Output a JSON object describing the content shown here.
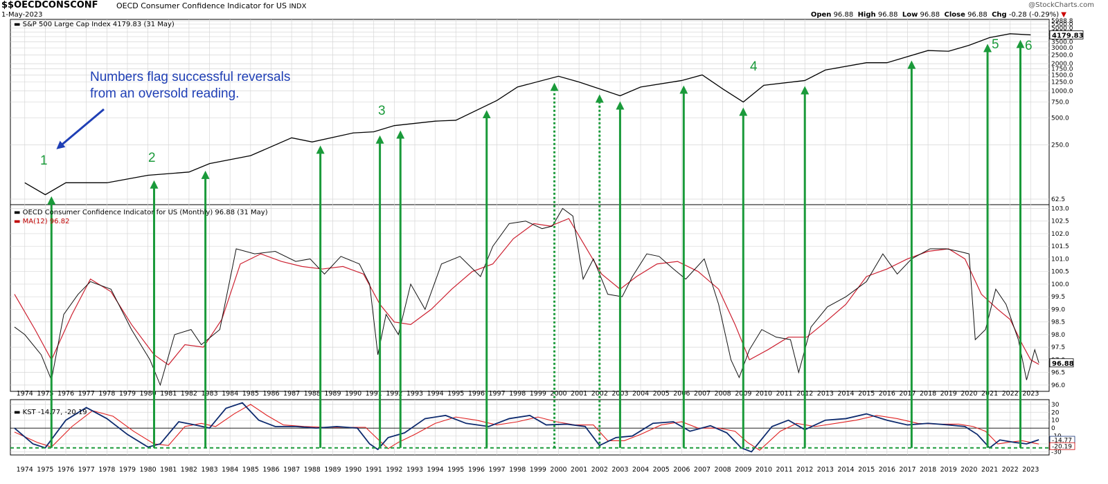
{
  "header": {
    "symbol": "$$OECDCONSCONF",
    "description": "OECD Consumer Confidence Indicator for US",
    "exchange": "INDX",
    "date": "1-May-2023",
    "watermark": "@StockCharts.com",
    "ohlc": {
      "open_label": "Open",
      "open": "96.88",
      "high_label": "High",
      "high": "96.88",
      "low_label": "Low",
      "low": "96.88",
      "close_label": "Close",
      "close": "96.88",
      "chg_label": "Chg",
      "chg": "-0.28 (-0.29%)"
    }
  },
  "annotation": {
    "line1": "Numbers flag successful reversals",
    "line2": "from an oversold reading."
  },
  "panels": {
    "sp500_label": "S&P 500 Large Cap Index 4179.83 (31 May)",
    "cci_label": "OECD Consumer Confidence Indicator for US (Monthly) 96.88 (31 May)",
    "ma_label": "MA(12) 96.82",
    "kst_label_name": "KST",
    "kst_label_vals": "-14.77, -20.19"
  },
  "reversal_numbers": [
    "1",
    "2",
    "3",
    "4",
    "5",
    "6"
  ],
  "colors": {
    "arrow_green": "#1a9a3a",
    "annotation_blue": "#1f3fb5",
    "price_line": "#000000",
    "ma_line": "#cc1f2f",
    "kst_line": "#0d2a6e",
    "kst_signal": "#e02020",
    "grid": "#d6d6d6"
  },
  "chart_data": [
    {
      "type": "line",
      "title": "S&P 500 Large Cap Index 4179.83 (31 May)",
      "scale": "log",
      "y_ticks": [
        "62.5",
        "250.0",
        "500.0",
        "750.0",
        "1000.0",
        "1250.0",
        "1500.0",
        "1750.0",
        "2000.0",
        "2500.0",
        "3000.0",
        "3500.0",
        "4000.0",
        "4500.0",
        "5000.0",
        "5500.0",
        "5988.8"
      ],
      "last_value": "4179.83",
      "x": [
        1974,
        1975,
        1976,
        1978,
        1980,
        1982,
        1983,
        1985,
        1987,
        1988,
        1990,
        1991,
        1992,
        1994,
        1995,
        1997,
        1998,
        2000,
        2001,
        2002,
        2003,
        2004,
        2006,
        2007,
        2008,
        2009,
        2010,
        2012,
        2013,
        2015,
        2016,
        2018,
        2019,
        2020,
        2021,
        2022,
        2023
      ],
      "values": [
        95,
        70,
        95,
        95,
        115,
        125,
        155,
        190,
        300,
        270,
        340,
        350,
        410,
        460,
        470,
        780,
        1100,
        1450,
        1250,
        1050,
        880,
        1100,
        1300,
        1500,
        1050,
        750,
        1150,
        1300,
        1700,
        2050,
        2050,
        2800,
        2750,
        3200,
        3900,
        4300,
        4179.83
      ]
    },
    {
      "type": "line",
      "title": "OECD Consumer Confidence Indicator for US (Monthly) 96.88 (31 May)",
      "y_ticks": [
        "96.0",
        "96.5",
        "97.0",
        "97.5",
        "98.0",
        "98.5",
        "99.0",
        "99.5",
        "100.0",
        "100.5",
        "101.0",
        "101.5",
        "102.0",
        "102.5",
        "103.0"
      ],
      "last_value": "96.88",
      "series": [
        {
          "name": "OECD Consumer Confidence Indicator for US (Monthly)",
          "x": [
            1973.5,
            1974,
            1974.8,
            1975.3,
            1975.9,
            1976.6,
            1977.2,
            1978.2,
            1979.2,
            1980.1,
            1980.6,
            1981.3,
            1982.1,
            1982.6,
            1983.5,
            1984.3,
            1985.2,
            1986.2,
            1987.2,
            1987.9,
            1988.6,
            1989.4,
            1990.3,
            1990.8,
            1991.2,
            1991.6,
            1992.2,
            1992.8,
            1993.5,
            1994.3,
            1995.2,
            1996.2,
            1996.8,
            1997.6,
            1998.4,
            1999.2,
            1999.7,
            2000.2,
            2000.7,
            2001.2,
            2001.7,
            2002.4,
            2003.1,
            2003.6,
            2004.3,
            2004.9,
            2005.6,
            2006.2,
            2007.1,
            2007.8,
            2008.4,
            2008.8,
            2009.3,
            2009.9,
            2010.6,
            2011.3,
            2011.7,
            2012.3,
            2013.1,
            2014.0,
            2015.0,
            2015.8,
            2016.5,
            2017.2,
            2018.1,
            2018.9,
            2019.5,
            2020.0,
            2020.3,
            2020.8,
            2021.3,
            2021.8,
            2022.4,
            2022.8,
            2023.2,
            2023.4
          ],
          "values": [
            98.3,
            98.0,
            97.2,
            96.2,
            98.8,
            99.6,
            100.1,
            99.8,
            98.2,
            97.0,
            96.0,
            98.0,
            98.2,
            97.6,
            98.2,
            101.4,
            101.2,
            101.3,
            100.9,
            101.0,
            100.4,
            101.1,
            100.8,
            100.0,
            97.2,
            98.8,
            98.0,
            100.0,
            99.0,
            100.8,
            101.1,
            100.3,
            101.5,
            102.4,
            102.5,
            102.2,
            102.3,
            103.0,
            102.7,
            100.2,
            101.0,
            99.6,
            99.5,
            100.3,
            101.2,
            101.1,
            100.6,
            100.2,
            101.0,
            99.2,
            97.0,
            96.3,
            97.4,
            98.2,
            97.9,
            97.8,
            96.5,
            98.3,
            99.1,
            99.5,
            100.1,
            101.2,
            100.4,
            101.0,
            101.4,
            101.4,
            101.3,
            101.2,
            97.8,
            98.2,
            99.8,
            99.2,
            97.8,
            96.2,
            97.4,
            96.88
          ]
        },
        {
          "name": "MA(12)",
          "x": [
            1973.5,
            1974.5,
            1975.3,
            1976.3,
            1977.2,
            1978.2,
            1979.2,
            1980.3,
            1981.0,
            1981.8,
            1982.7,
            1983.6,
            1984.5,
            1985.5,
            1986.5,
            1987.5,
            1988.5,
            1989.5,
            1990.5,
            1991.3,
            1992.0,
            1992.8,
            1993.8,
            1994.8,
            1995.8,
            1996.8,
            1997.8,
            1998.8,
            1999.6,
            2000.5,
            2001.3,
            2002.1,
            2003.0,
            2003.8,
            2004.8,
            2005.8,
            2006.8,
            2007.8,
            2008.6,
            2009.3,
            2010.2,
            2011.2,
            2012.1,
            2013.0,
            2014.0,
            2015.0,
            2016.0,
            2017.0,
            2018.0,
            2019.0,
            2019.8,
            2020.6,
            2021.4,
            2022.0,
            2022.6,
            2023.0,
            2023.4
          ],
          "values": [
            99.6,
            98.2,
            97.0,
            98.8,
            100.2,
            99.7,
            98.4,
            97.2,
            96.8,
            97.6,
            97.5,
            98.6,
            100.8,
            101.2,
            100.9,
            100.7,
            100.6,
            100.7,
            100.4,
            99.2,
            98.5,
            98.4,
            99.0,
            99.8,
            100.5,
            100.8,
            101.8,
            102.4,
            102.3,
            102.6,
            101.5,
            100.4,
            99.8,
            100.3,
            100.8,
            100.9,
            100.5,
            99.8,
            98.4,
            97.0,
            97.4,
            97.9,
            97.9,
            98.5,
            99.2,
            100.3,
            100.6,
            101.0,
            101.3,
            101.4,
            101.0,
            99.6,
            99.0,
            98.6,
            97.6,
            97.0,
            96.82
          ]
        }
      ]
    },
    {
      "type": "line",
      "title": "KST -14.77, -20.19",
      "y_ticks": [
        "-30",
        "-20",
        "-10",
        "0",
        "10",
        "20",
        "30"
      ],
      "series": [
        {
          "name": "KST",
          "x": [
            1973.5,
            1974.4,
            1975.0,
            1976.0,
            1977.0,
            1978.0,
            1979.0,
            1980.0,
            1980.6,
            1981.5,
            1982.3,
            1983.0,
            1983.8,
            1984.6,
            1985.4,
            1986.2,
            1987.2,
            1988.2,
            1989.2,
            1990.2,
            1990.8,
            1991.2,
            1991.7,
            1992.5,
            1993.5,
            1994.5,
            1995.5,
            1996.6,
            1997.6,
            1998.6,
            1999.4,
            2000.4,
            2001.3,
            2002.0,
            2002.8,
            2003.6,
            2004.6,
            2005.6,
            2006.4,
            2007.4,
            2008.2,
            2008.9,
            2009.4,
            2010.4,
            2011.2,
            2012.0,
            2013.0,
            2014.0,
            2015.0,
            2016.0,
            2017.0,
            2018.0,
            2019.0,
            2019.8,
            2020.4,
            2021.0,
            2021.5,
            2022.2,
            2022.8,
            2023.4
          ],
          "values": [
            0,
            -20,
            -25,
            10,
            26,
            12,
            -8,
            -24,
            -20,
            8,
            4,
            0,
            25,
            32,
            10,
            2,
            2,
            0,
            2,
            0,
            -20,
            -27,
            -12,
            -6,
            12,
            16,
            6,
            2,
            12,
            16,
            4,
            5,
            2,
            -22,
            -12,
            -10,
            6,
            8,
            -4,
            3,
            -6,
            -25,
            -30,
            2,
            10,
            -2,
            10,
            12,
            18,
            10,
            4,
            6,
            4,
            2,
            -8,
            -25,
            -15,
            -18,
            -20,
            -14.77
          ]
        },
        {
          "name": "Signal",
          "x": [
            1973.5,
            1974.6,
            1975.3,
            1976.3,
            1977.3,
            1978.3,
            1979.3,
            1980.3,
            1981.0,
            1981.8,
            1982.6,
            1983.3,
            1984.2,
            1985.0,
            1985.8,
            1986.6,
            1987.6,
            1988.6,
            1989.6,
            1990.6,
            1991.2,
            1991.7,
            1992.2,
            1993.0,
            1994.0,
            1995.0,
            1996.0,
            1997.0,
            1998.0,
            1999.0,
            1999.9,
            2000.8,
            2001.7,
            2002.4,
            2003.2,
            2004.0,
            2005.0,
            2006.0,
            2006.8,
            2007.8,
            2008.6,
            2009.2,
            2009.8,
            2010.8,
            2011.6,
            2012.5,
            2013.5,
            2014.5,
            2015.5,
            2016.5,
            2017.5,
            2018.5,
            2019.5,
            2020.2,
            2020.8,
            2021.4,
            2021.9,
            2022.6,
            2023.4
          ],
          "values": [
            -5,
            -18,
            -24,
            2,
            22,
            15,
            -4,
            -20,
            -22,
            2,
            6,
            2,
            18,
            30,
            16,
            4,
            2,
            1,
            1,
            1,
            -14,
            -26,
            -18,
            -8,
            6,
            14,
            10,
            4,
            8,
            14,
            8,
            4,
            4,
            -16,
            -16,
            -8,
            4,
            8,
            0,
            0,
            -4,
            -18,
            -28,
            -4,
            6,
            2,
            6,
            10,
            16,
            12,
            6,
            5,
            5,
            2,
            -4,
            -20,
            -18,
            -16,
            -20.19
          ]
        }
      ]
    }
  ],
  "x_axis_years": [
    "1974",
    "1975",
    "1976",
    "1977",
    "1978",
    "1979",
    "1980",
    "1981",
    "1982",
    "1983",
    "1984",
    "1985",
    "1986",
    "1987",
    "1988",
    "1989",
    "1990",
    "1991",
    "1992",
    "1993",
    "1994",
    "1995",
    "1996",
    "1997",
    "1998",
    "1999",
    "2000",
    "2001",
    "2002",
    "2003",
    "2004",
    "2005",
    "2006",
    "2007",
    "2008",
    "2009",
    "2010",
    "2011",
    "2012",
    "2013",
    "2014",
    "2015",
    "2016",
    "2017",
    "2018",
    "2019",
    "2020",
    "2021",
    "2022",
    "2023"
  ],
  "reversal_arrows": [
    {
      "year": 1975.3,
      "style": "solid"
    },
    {
      "year": 1980.3,
      "style": "solid"
    },
    {
      "year": 1982.8,
      "style": "solid"
    },
    {
      "year": 1988.4,
      "style": "solid"
    },
    {
      "year": 1991.3,
      "style": "solid"
    },
    {
      "year": 1992.3,
      "style": "solid"
    },
    {
      "year": 1996.5,
      "style": "solid"
    },
    {
      "year": 1999.8,
      "style": "dotted"
    },
    {
      "year": 2002.0,
      "style": "dotted"
    },
    {
      "year": 2003.0,
      "style": "solid"
    },
    {
      "year": 2006.1,
      "style": "solid"
    },
    {
      "year": 2009.0,
      "style": "solid"
    },
    {
      "year": 2012.0,
      "style": "solid"
    },
    {
      "year": 2017.2,
      "style": "solid"
    },
    {
      "year": 2020.9,
      "style": "solid"
    },
    {
      "year": 2022.5,
      "style": "solid"
    }
  ],
  "kst_oversold_level": -25
}
